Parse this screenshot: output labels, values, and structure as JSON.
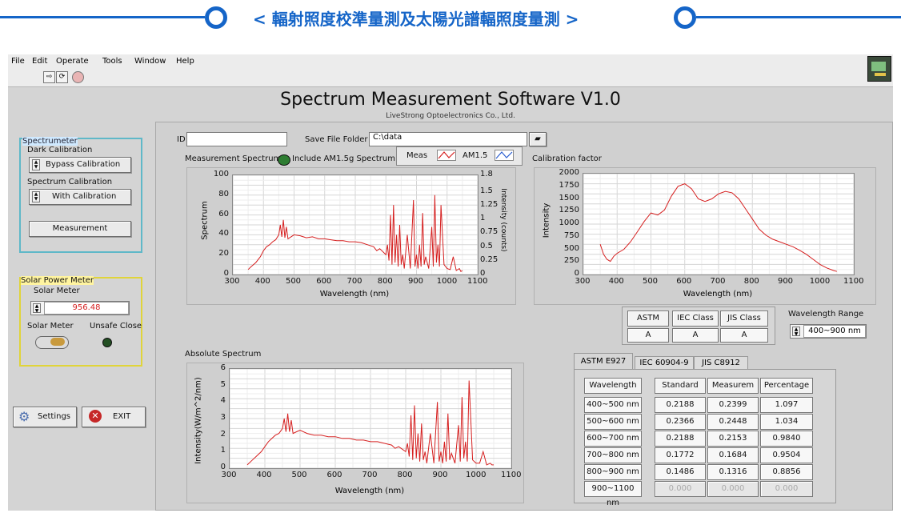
{
  "banner": {
    "title": "< 輻射照度校準量測及太陽光譜輻照度量測 >"
  },
  "colors": {
    "accent": "#1565c8",
    "trace": "#d62020",
    "led": "#2e7d32"
  },
  "menu": [
    "File",
    "Edit",
    "Operate",
    "Tools",
    "Window",
    "Help"
  ],
  "app": {
    "title": "Spectrum Measurement Software V1.0",
    "company": "LiveStrong Optoelectronics Co., Ltd."
  },
  "spectrometer": {
    "group_label": "Spectrumeter",
    "dark_label": "Dark Calibration",
    "dark_value": "Bypass Calibration",
    "spectrum_label": "Spectrum Calibration",
    "spectrum_value": "With Calibration",
    "measure_button": "Measurement"
  },
  "solar": {
    "group_label": "Solar Power Meter",
    "meter_label": "Solar Meter",
    "meter_value": "956.48",
    "switch_label": "Solar Meter",
    "unsafe_label": "Unsafe Close"
  },
  "actions": {
    "settings": "Settings",
    "exit": "EXIT"
  },
  "top_fields": {
    "id_label": "ID",
    "id_value": "",
    "folder_label": "Save File Folder",
    "folder_value": "C:\\data"
  },
  "meas_panel": {
    "measurement_label": "Measurement Spectrum",
    "include_label": "Include AM1.5g Spectrum",
    "legend_meas": "Meas",
    "legend_am": "AM1.5"
  },
  "chart_data": [
    {
      "type": "line",
      "title": "",
      "xlabel": "Wavelength (nm)",
      "ylabel": "Spectrum",
      "y2label": "Intensity (counts)",
      "xlim": [
        300,
        1100
      ],
      "ylim": [
        0,
        100
      ],
      "y2lim": [
        0,
        1.8
      ],
      "x_ticks": [
        "300",
        "400",
        "500",
        "600",
        "700",
        "800",
        "900",
        "1000",
        "1100"
      ],
      "y_ticks": [
        "0",
        "20",
        "40",
        "60",
        "80",
        "100"
      ],
      "y2_ticks": [
        "0",
        "0.25",
        "0.5",
        "0.75",
        "1",
        "1.25",
        "1.5",
        "1.8"
      ],
      "series": [
        {
          "color": "#d62020",
          "x": [
            350,
            360,
            375,
            390,
            400,
            410,
            420,
            430,
            440,
            450,
            455,
            460,
            465,
            470,
            475,
            480,
            490,
            500,
            520,
            540,
            560,
            580,
            600,
            620,
            640,
            660,
            680,
            700,
            720,
            740,
            760,
            770,
            780,
            800,
            805,
            810,
            815,
            820,
            825,
            830,
            835,
            840,
            845,
            850,
            855,
            860,
            870,
            880,
            890,
            895,
            900,
            905,
            910,
            915,
            920,
            925,
            930,
            940,
            950,
            955,
            960,
            965,
            970,
            975,
            980,
            990,
            1000,
            1010,
            1020,
            1030,
            1040,
            1045,
            1050
          ],
          "y": [
            5,
            8,
            12,
            18,
            24,
            28,
            30,
            33,
            35,
            40,
            50,
            38,
            55,
            37,
            48,
            36,
            38,
            40,
            39,
            37,
            38,
            36,
            36,
            35,
            34,
            34,
            33,
            33,
            32,
            30,
            28,
            24,
            26,
            20,
            30,
            14,
            60,
            10,
            70,
            12,
            40,
            8,
            50,
            10,
            20,
            6,
            40,
            6,
            75,
            8,
            20,
            6,
            30,
            8,
            62,
            10,
            18,
            6,
            48,
            8,
            80,
            12,
            30,
            8,
            70,
            10,
            6,
            5,
            18,
            4,
            6,
            3,
            4
          ]
        }
      ]
    },
    {
      "type": "line",
      "title": "Calibration factor",
      "xlabel": "Wavelength (nm)",
      "ylabel": "Intensity",
      "xlim": [
        300,
        1100
      ],
      "ylim": [
        0,
        2000
      ],
      "x_ticks": [
        "300",
        "400",
        "500",
        "600",
        "700",
        "800",
        "900",
        "1000",
        "1100"
      ],
      "y_ticks": [
        "0",
        "250",
        "500",
        "750",
        "1000",
        "1250",
        "1500",
        "1750",
        "2000"
      ],
      "series": [
        {
          "color": "#d62020",
          "x": [
            350,
            360,
            370,
            380,
            390,
            400,
            420,
            440,
            460,
            480,
            500,
            520,
            540,
            560,
            580,
            600,
            620,
            640,
            660,
            680,
            700,
            720,
            740,
            760,
            780,
            800,
            820,
            840,
            860,
            880,
            900,
            920,
            940,
            960,
            980,
            1000,
            1020,
            1040,
            1050
          ],
          "y": [
            600,
            400,
            300,
            260,
            360,
            420,
            500,
            650,
            850,
            1050,
            1220,
            1180,
            1280,
            1550,
            1750,
            1800,
            1700,
            1500,
            1450,
            1500,
            1600,
            1650,
            1620,
            1500,
            1300,
            1100,
            900,
            780,
            700,
            650,
            600,
            550,
            480,
            400,
            300,
            200,
            130,
            80,
            60
          ]
        }
      ]
    },
    {
      "type": "line",
      "title": "Absolute Spectrum",
      "xlabel": "Wavelength (nm)",
      "ylabel": "Intensity(W/m^2/nm)",
      "xlim": [
        300,
        1100
      ],
      "ylim": [
        0,
        6
      ],
      "x_ticks": [
        "300",
        "400",
        "500",
        "600",
        "700",
        "800",
        "900",
        "1000",
        "1100"
      ],
      "y_ticks": [
        "0",
        "1",
        "2",
        "3",
        "4",
        "5",
        "6"
      ],
      "series": [
        {
          "color": "#d62020",
          "x": [
            350,
            360,
            375,
            390,
            400,
            410,
            420,
            430,
            440,
            450,
            455,
            460,
            465,
            470,
            475,
            480,
            490,
            500,
            520,
            540,
            560,
            580,
            600,
            620,
            640,
            660,
            680,
            700,
            720,
            740,
            760,
            770,
            780,
            800,
            805,
            810,
            815,
            820,
            825,
            830,
            835,
            840,
            845,
            850,
            855,
            860,
            870,
            880,
            890,
            895,
            900,
            905,
            910,
            915,
            920,
            925,
            930,
            940,
            950,
            955,
            960,
            965,
            970,
            975,
            980,
            990,
            1000,
            1010,
            1020,
            1030,
            1040,
            1045,
            1050
          ],
          "y": [
            0.2,
            0.4,
            0.7,
            1.0,
            1.3,
            1.6,
            1.8,
            2.0,
            2.1,
            2.4,
            3.0,
            2.2,
            3.3,
            2.2,
            2.9,
            2.1,
            2.2,
            2.3,
            2.1,
            2.0,
            2.0,
            1.9,
            1.9,
            1.8,
            1.8,
            1.7,
            1.7,
            1.6,
            1.6,
            1.5,
            1.4,
            1.2,
            1.3,
            1.0,
            1.5,
            0.7,
            3.2,
            0.5,
            3.8,
            0.6,
            2.1,
            0.4,
            2.7,
            0.5,
            1.0,
            0.3,
            2.1,
            0.3,
            4.0,
            0.4,
            1.0,
            0.3,
            1.6,
            0.4,
            3.3,
            0.5,
            0.9,
            0.3,
            2.6,
            0.4,
            4.3,
            0.6,
            1.6,
            0.4,
            5.3,
            0.5,
            0.3,
            0.3,
            1.0,
            0.2,
            0.3,
            0.2,
            0.2
          ]
        }
      ]
    }
  ],
  "std_headers": [
    "ASTM",
    "IEC Class",
    "JIS Class"
  ],
  "std_values": [
    "A",
    "A",
    "A"
  ],
  "wavelength_range": {
    "label": "Wavelength Range",
    "value": "400~900 nm"
  },
  "tabs": [
    "ASTM E927",
    "IEC 60904-9",
    "JIS C8912"
  ],
  "table": {
    "headers": [
      "Wavelength",
      "Standard",
      "Measurem",
      "Percentage"
    ],
    "rows": [
      [
        "400~500 nm",
        "0.2188",
        "0.2399",
        "1.097"
      ],
      [
        "500~600 nm",
        "0.2366",
        "0.2448",
        "1.034"
      ],
      [
        "600~700 nm",
        "0.2188",
        "0.2153",
        "0.9840"
      ],
      [
        "700~800 nm",
        "0.1772",
        "0.1684",
        "0.9504"
      ],
      [
        "800~900 nm",
        "0.1486",
        "0.1316",
        "0.8856"
      ],
      [
        "900~1100 nm",
        "0.000",
        "0.000",
        "0.000"
      ]
    ]
  }
}
